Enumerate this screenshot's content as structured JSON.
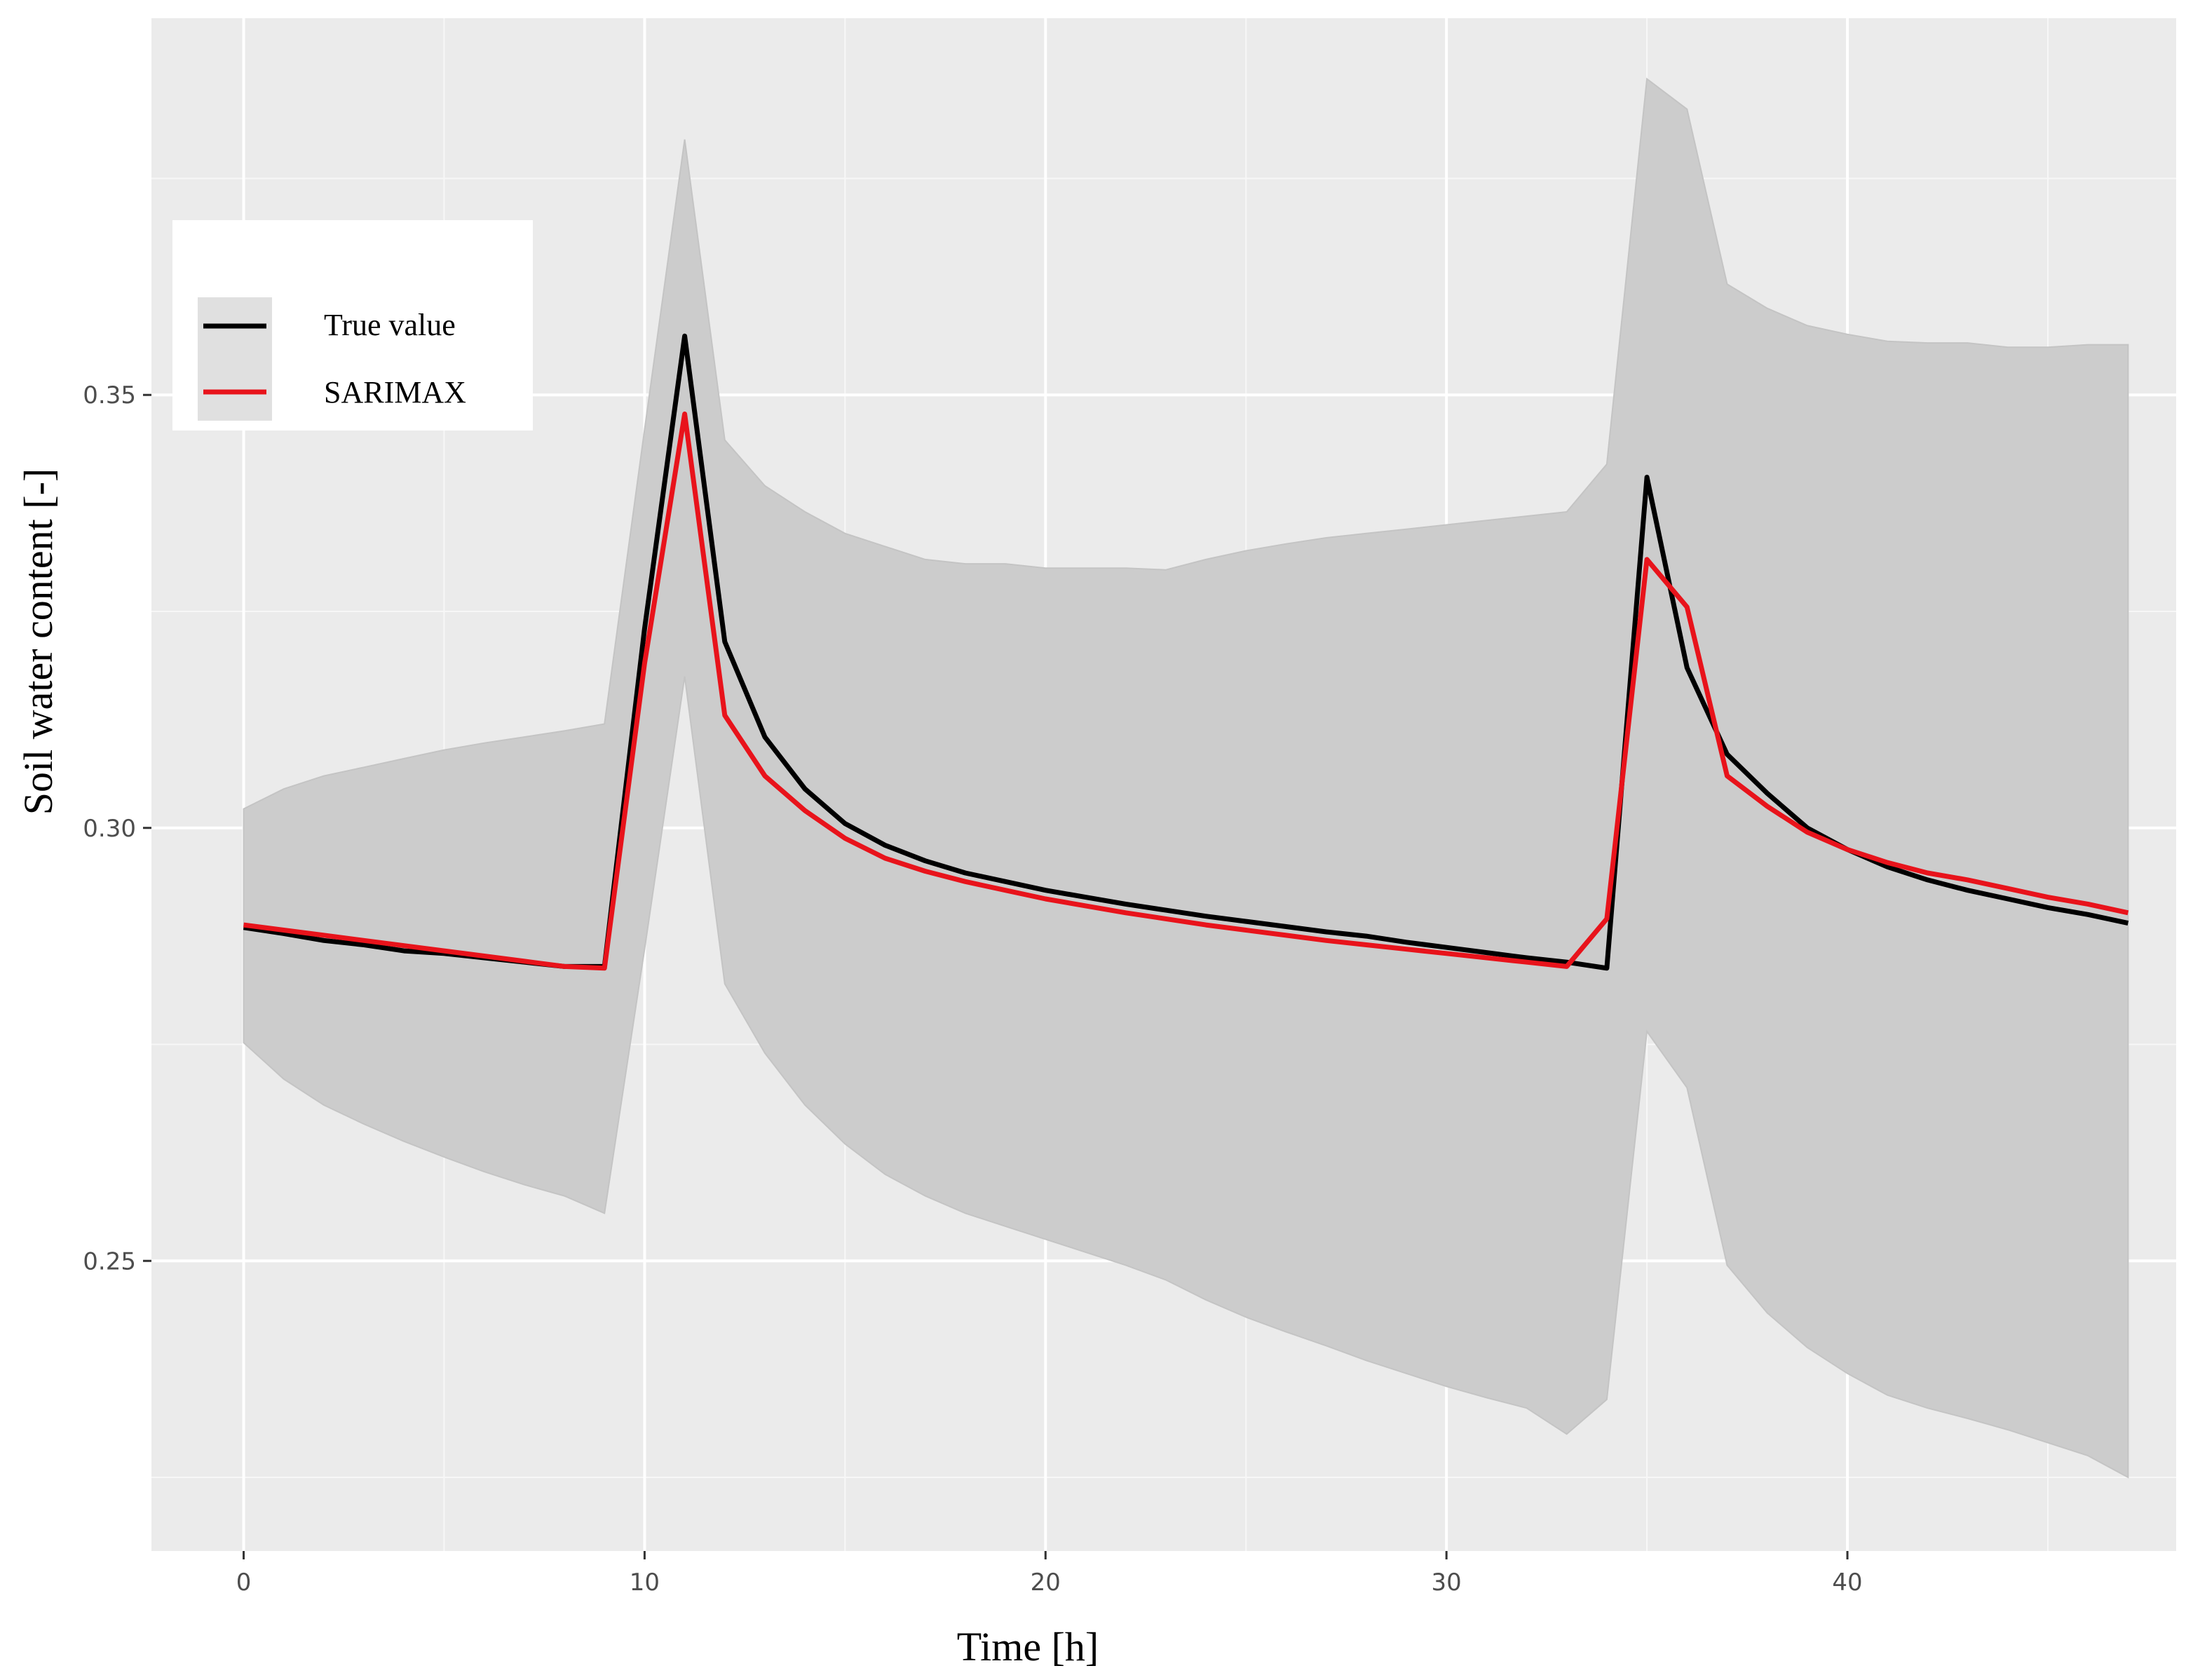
{
  "chart_data": {
    "type": "line",
    "title": "",
    "xlabel": "Time [h]",
    "ylabel": "Soil water content [-]",
    "xlim": [
      -2.3,
      48.2
    ],
    "ylim": [
      0.2165,
      0.3935
    ],
    "x_ticks": [
      0,
      10,
      20,
      30,
      40
    ],
    "x_tick_labels": [
      "0",
      "10",
      "20",
      "30",
      "40"
    ],
    "y_ticks": [
      0.25,
      0.3,
      0.35
    ],
    "y_tick_labels": [
      "0.25",
      "0.30",
      "0.35"
    ],
    "grid": true,
    "legend": {
      "position": "top-left",
      "entries": [
        "True value",
        "SARIMAX"
      ]
    },
    "x": [
      0,
      1,
      2,
      3,
      4,
      5,
      6,
      7,
      8,
      9,
      10,
      11,
      12,
      13,
      14,
      15,
      16,
      17,
      18,
      19,
      20,
      21,
      22,
      23,
      24,
      25,
      26,
      27,
      28,
      29,
      30,
      31,
      32,
      33,
      34,
      35,
      36,
      37,
      38,
      39,
      40,
      41,
      42,
      43,
      44,
      45,
      46,
      47
    ],
    "series": [
      {
        "name": "True value",
        "color": "#000000",
        "values": [
          0.2885,
          0.2878,
          0.287,
          0.2865,
          0.2858,
          0.2855,
          0.285,
          0.2845,
          0.284,
          0.284,
          0.323,
          0.3568,
          0.3215,
          0.3105,
          0.3045,
          0.3005,
          0.298,
          0.2962,
          0.2948,
          0.2938,
          0.2928,
          0.292,
          0.2912,
          0.2905,
          0.2898,
          0.2892,
          0.2886,
          0.288,
          0.2875,
          0.2868,
          0.2862,
          0.2856,
          0.285,
          0.2845,
          0.2838,
          0.3405,
          0.3185,
          0.3085,
          0.304,
          0.3,
          0.2975,
          0.2955,
          0.294,
          0.2928,
          0.2918,
          0.2908,
          0.29,
          0.289
        ]
      },
      {
        "name": "SARIMAX",
        "color": "#e8131b",
        "values": [
          0.2888,
          0.2882,
          0.2876,
          0.287,
          0.2864,
          0.2858,
          0.2852,
          0.2846,
          0.284,
          0.2838,
          0.319,
          0.3478,
          0.313,
          0.306,
          0.302,
          0.2988,
          0.2965,
          0.295,
          0.2938,
          0.2928,
          0.2918,
          0.291,
          0.2902,
          0.2895,
          0.2888,
          0.2882,
          0.2876,
          0.287,
          0.2865,
          0.286,
          0.2855,
          0.285,
          0.2845,
          0.284,
          0.2895,
          0.331,
          0.3255,
          0.306,
          0.3025,
          0.2995,
          0.2975,
          0.296,
          0.2948,
          0.294,
          0.293,
          0.292,
          0.2912,
          0.2902
        ]
      }
    ],
    "band": {
      "color": "#cccccc",
      "upper": [
        0.3022,
        0.3045,
        0.306,
        0.307,
        0.308,
        0.309,
        0.3098,
        0.3105,
        0.3112,
        0.312,
        0.346,
        0.3795,
        0.3448,
        0.3395,
        0.3365,
        0.334,
        0.3325,
        0.331,
        0.3305,
        0.3305,
        0.33,
        0.33,
        0.33,
        0.3298,
        0.331,
        0.332,
        0.3328,
        0.3335,
        0.334,
        0.3345,
        0.335,
        0.3355,
        0.336,
        0.3365,
        0.342,
        0.3865,
        0.383,
        0.3628,
        0.36,
        0.358,
        0.357,
        0.3562,
        0.356,
        0.356,
        0.3555,
        0.3555,
        0.3558,
        0.3558
      ],
      "lower": [
        0.2752,
        0.271,
        0.268,
        0.2658,
        0.2638,
        0.262,
        0.2603,
        0.2588,
        0.2575,
        0.2555,
        0.286,
        0.3175,
        0.282,
        0.274,
        0.268,
        0.2635,
        0.26,
        0.2575,
        0.2555,
        0.254,
        0.2525,
        0.251,
        0.2495,
        0.2478,
        0.2455,
        0.2435,
        0.2418,
        0.2402,
        0.2385,
        0.237,
        0.2355,
        0.2342,
        0.233,
        0.23,
        0.234,
        0.2765,
        0.27,
        0.2495,
        0.244,
        0.24,
        0.237,
        0.2345,
        0.233,
        0.2318,
        0.2305,
        0.229,
        0.2275,
        0.225
      ]
    }
  }
}
